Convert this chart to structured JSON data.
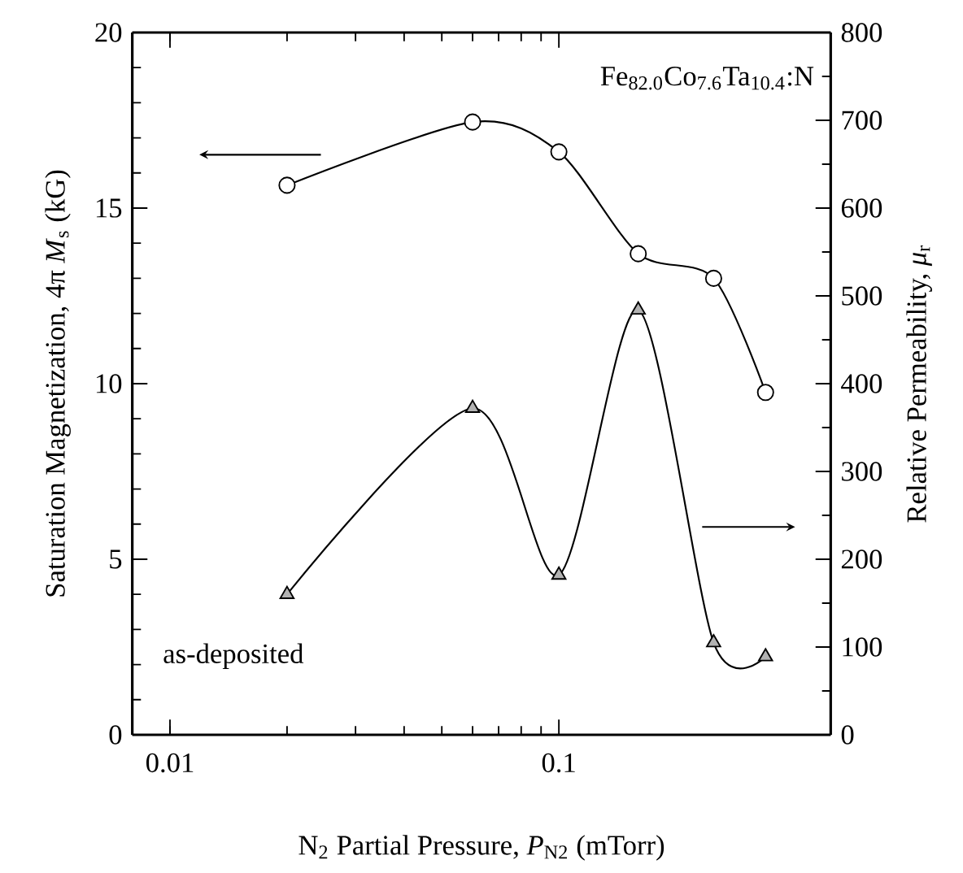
{
  "chart_data": {
    "type": "line",
    "xlabel": "N$_{2}$ Partial Pressure, *P*$_{N2}$ (mTorr)",
    "ylabel": "Saturation Magnetization, 4π *M*$_{s}$ (kG)",
    "y2label": "Relative Permeability, *μ*$_{r}$",
    "annotations": [
      "Fe$_{82.0}$Co$_{7.6}$Ta$_{10.4}$:N",
      "as-deposited"
    ],
    "x": [
      0.02,
      0.06,
      0.1,
      0.16,
      0.25,
      0.34
    ],
    "log": "x",
    "xlim": [
      0.008,
      0.5
    ],
    "xticks": [
      0.01,
      0.1
    ],
    "ylim": [
      0,
      20
    ],
    "yticks": [
      0,
      5,
      10,
      15,
      20
    ],
    "y2lim": [
      0,
      800
    ],
    "y2ticks": [
      0,
      100,
      200,
      300,
      400,
      500,
      600,
      700,
      800
    ],
    "series": [
      {
        "color": "#000000",
        "marker": "circle",
        "values": [
          15.65,
          17.45,
          16.6,
          13.7,
          13.0,
          9.75
        ]
      },
      {
        "color": "#000000",
        "marker": "triangle",
        "axis": "y2",
        "values": [
          160,
          372,
          182,
          484,
          105,
          89
        ]
      }
    ]
  }
}
